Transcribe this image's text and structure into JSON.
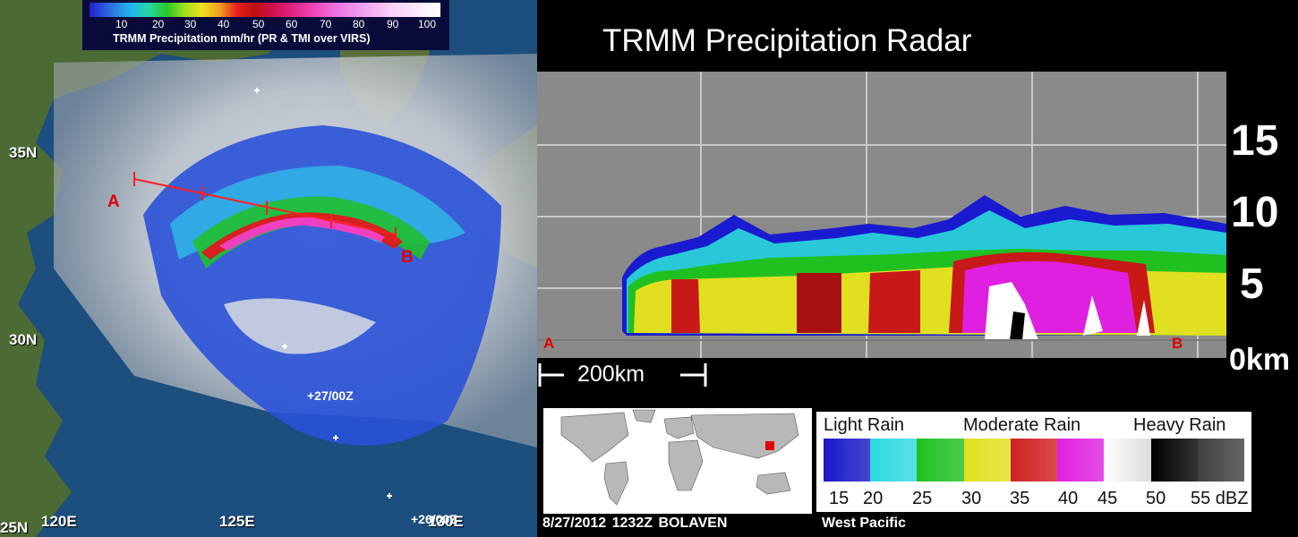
{
  "map": {
    "colorbar": {
      "ticks": [
        "10",
        "20",
        "30",
        "40",
        "50",
        "60",
        "70",
        "80",
        "90",
        "100"
      ],
      "caption": "TRMM Precipitation mm/hr (PR & TMI over VIRS)"
    },
    "latitudes": [
      "35N",
      "30N",
      "25N"
    ],
    "longitudes": [
      "120E",
      "125E",
      "130E"
    ],
    "track_times": [
      "+27/00Z",
      "+26/00Z"
    ],
    "cross_section_points": [
      "A",
      "B"
    ],
    "colors": {
      "ocean": "#1a4a78",
      "land": "#4a6a30",
      "section_line": "#ff2020"
    }
  },
  "radar": {
    "title": "TRMM Precipitation Radar",
    "altitudes": [
      "15",
      "10",
      "5",
      "0km"
    ],
    "endpoints": [
      "A",
      "B"
    ],
    "scale_bar": "200km"
  },
  "legend": {
    "categories": [
      "Light Rain",
      "Moderate Rain",
      "Heavy Rain"
    ],
    "swatches": [
      "#1818c8",
      "#30d8e0",
      "#20c020",
      "#e0e020",
      "#d02020",
      "#e020e0",
      "#ffffff",
      "#000000",
      "#404040"
    ],
    "ticks": [
      "15",
      "20",
      "25",
      "30",
      "35",
      "40",
      "45",
      "50",
      "55 dBZ"
    ]
  },
  "footer": {
    "left": "8/27/2012  1232Z   BOLAVEN",
    "right": "West Pacific"
  }
}
